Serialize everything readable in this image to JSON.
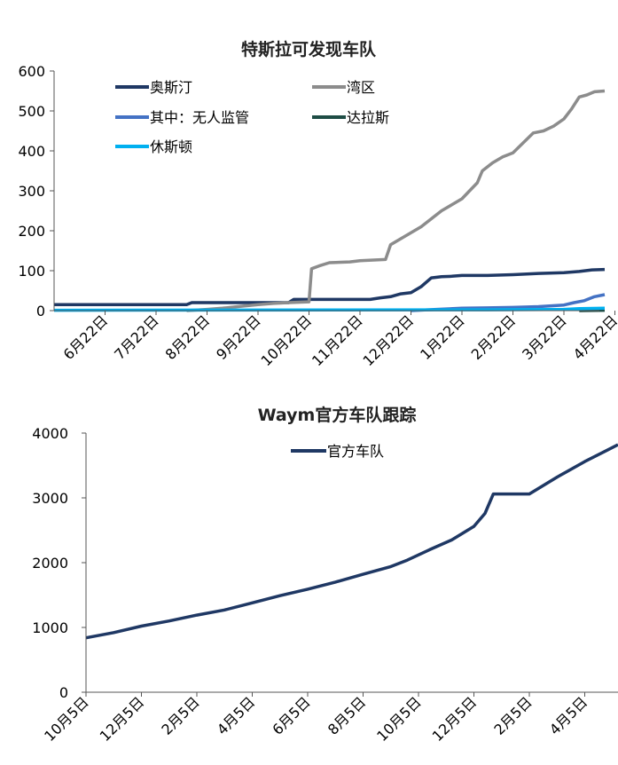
{
  "charts": [
    {
      "title": "特斯拉可发现车队",
      "chart_data": {
        "type": "line",
        "title": "特斯拉可发现车队",
        "ylim": [
          0,
          600
        ],
        "yticks": [
          0,
          100,
          200,
          300,
          400,
          500,
          600
        ],
        "x_ticks": [
          "6月22日",
          "7月22日",
          "8月22日",
          "9月22日",
          "10月22日",
          "11月22日",
          "12月22日",
          "1月22日",
          "2月22日",
          "3月22日",
          "4月22日"
        ],
        "legend_placement": "top",
        "series": [
          {
            "name": "奥斯汀",
            "color": "#1F3864",
            "points": [
              [
                0,
                15
              ],
              [
                2.6,
                15
              ],
              [
                2.7,
                20
              ],
              [
                4.6,
                20
              ],
              [
                4.7,
                28
              ],
              [
                6.2,
                28
              ],
              [
                6.4,
                32
              ],
              [
                6.6,
                35
              ],
              [
                6.8,
                42
              ],
              [
                7.0,
                45
              ],
              [
                7.2,
                60
              ],
              [
                7.4,
                82
              ],
              [
                7.6,
                85
              ],
              [
                7.8,
                86
              ],
              [
                8.0,
                88
              ],
              [
                8.5,
                88
              ],
              [
                9.0,
                90
              ],
              [
                9.5,
                93
              ],
              [
                10.0,
                95
              ],
              [
                10.3,
                98
              ],
              [
                10.55,
                102
              ],
              [
                10.8,
                103
              ]
            ]
          },
          {
            "name": "湾区",
            "color": "#8C8C8C",
            "points": [
              [
                2.6,
                0
              ],
              [
                3.0,
                3
              ],
              [
                3.3,
                6
              ],
              [
                3.6,
                10
              ],
              [
                4.0,
                15
              ],
              [
                4.3,
                18
              ],
              [
                4.6,
                20
              ],
              [
                5.0,
                22
              ],
              [
                5.05,
                105
              ],
              [
                5.2,
                112
              ],
              [
                5.4,
                120
              ],
              [
                5.8,
                122
              ],
              [
                6.0,
                125
              ],
              [
                6.5,
                128
              ],
              [
                6.6,
                165
              ],
              [
                6.8,
                180
              ],
              [
                7.0,
                195
              ],
              [
                7.2,
                210
              ],
              [
                7.4,
                230
              ],
              [
                7.6,
                250
              ],
              [
                7.8,
                265
              ],
              [
                8.0,
                280
              ],
              [
                8.15,
                300
              ],
              [
                8.3,
                320
              ],
              [
                8.4,
                350
              ],
              [
                8.6,
                370
              ],
              [
                8.8,
                385
              ],
              [
                9.0,
                395
              ],
              [
                9.2,
                420
              ],
              [
                9.4,
                445
              ],
              [
                9.6,
                450
              ],
              [
                9.8,
                462
              ],
              [
                10.0,
                480
              ],
              [
                10.15,
                505
              ],
              [
                10.3,
                535
              ],
              [
                10.45,
                540
              ],
              [
                10.6,
                548
              ],
              [
                10.8,
                550
              ]
            ]
          },
          {
            "name": "其中：无人监管",
            "color": "#4472C4",
            "points": [
              [
                7.0,
                0
              ],
              [
                7.5,
                3
              ],
              [
                8.0,
                6
              ],
              [
                8.5,
                7
              ],
              [
                9.0,
                8
              ],
              [
                9.5,
                10
              ],
              [
                10.0,
                14
              ],
              [
                10.2,
                20
              ],
              [
                10.4,
                25
              ],
              [
                10.6,
                35
              ],
              [
                10.8,
                40
              ]
            ]
          },
          {
            "name": "达拉斯",
            "color": "#1E4D45",
            "points": [
              [
                10.3,
                0
              ],
              [
                10.8,
                1
              ]
            ]
          },
          {
            "name": "休斯顿",
            "color": "#00B0F0",
            "points": [
              [
                0,
                1
              ],
              [
                8.5,
                2
              ],
              [
                10.0,
                3
              ],
              [
                10.3,
                5
              ],
              [
                10.8,
                6
              ]
            ]
          }
        ]
      }
    },
    {
      "title": "Waym官方车队跟踪",
      "chart_data": {
        "type": "line",
        "title": "Waym官方车队跟踪",
        "ylim": [
          0,
          4000
        ],
        "yticks": [
          0,
          1000,
          2000,
          3000,
          4000
        ],
        "x_ticks": [
          "10月5日",
          "12月5日",
          "2月5日",
          "4月5日",
          "6月5日",
          "8月5日",
          "10月5日",
          "12月5日",
          "2月5日",
          "4月5日"
        ],
        "legend_placement": "top",
        "series": [
          {
            "name": "官方车队",
            "color": "#1F3864",
            "points": [
              [
                0,
                840
              ],
              [
                0.5,
                920
              ],
              [
                1,
                1020
              ],
              [
                1.5,
                1100
              ],
              [
                2,
                1190
              ],
              [
                2.5,
                1270
              ],
              [
                3,
                1380
              ],
              [
                3.5,
                1490
              ],
              [
                4,
                1590
              ],
              [
                4.5,
                1700
              ],
              [
                5,
                1820
              ],
              [
                5.5,
                1940
              ],
              [
                5.8,
                2040
              ],
              [
                6.2,
                2200
              ],
              [
                6.6,
                2350
              ],
              [
                7.0,
                2560
              ],
              [
                7.2,
                2760
              ],
              [
                7.35,
                3060
              ],
              [
                8.0,
                3060
              ],
              [
                8.5,
                3320
              ],
              [
                9.0,
                3560
              ],
              [
                9.6,
                3820
              ]
            ]
          }
        ]
      }
    }
  ]
}
